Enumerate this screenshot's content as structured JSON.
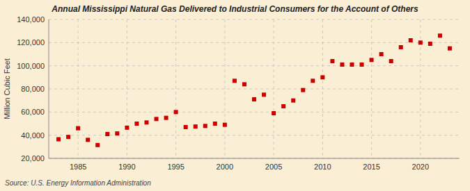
{
  "chart_data": {
    "type": "scatter",
    "title": "Annual Mississippi Natural Gas Delivered to Industrial Consumers for the Account of Others",
    "y_label": "Million Cubic Feet",
    "annotations": [
      "Source: U.S. Energy Information Administration"
    ],
    "x": [
      1983,
      1984,
      1985,
      1986,
      1987,
      1988,
      1989,
      1990,
      1991,
      1992,
      1993,
      1994,
      1995,
      1996,
      1997,
      1998,
      1999,
      2000,
      2001,
      2002,
      2003,
      2004,
      2005,
      2006,
      2007,
      2008,
      2009,
      2010,
      2011,
      2012,
      2013,
      2014,
      2015,
      2016,
      2017,
      2018,
      2019,
      2020,
      2021,
      2022,
      2023
    ],
    "values": [
      36500,
      38500,
      46000,
      36000,
      31500,
      41000,
      41500,
      46500,
      50000,
      51000,
      54000,
      55000,
      60000,
      47000,
      47500,
      48000,
      50000,
      49000,
      87000,
      84000,
      71000,
      75000,
      59000,
      65000,
      70000,
      79000,
      87000,
      90000,
      104000,
      101000,
      101000,
      101000,
      105000,
      110000,
      104000,
      116000,
      122000,
      120000,
      119000,
      126000,
      115000
    ],
    "color": "#cc0000",
    "marker": "square",
    "xlim": [
      1982,
      2024
    ],
    "xticks": [
      1985,
      1990,
      1995,
      2000,
      2005,
      2010,
      2015,
      2020
    ],
    "ylim": [
      20000,
      140000
    ],
    "yticks": [
      {
        "value": 20000,
        "label": "20,000"
      },
      {
        "value": 40000,
        "label": "40,000"
      },
      {
        "value": 60000,
        "label": "60,000"
      },
      {
        "value": 80000,
        "label": "80,000"
      },
      {
        "value": 100000,
        "label": "100,000"
      },
      {
        "value": 120000,
        "label": "120,000"
      },
      {
        "value": 140000,
        "label": "140,000"
      }
    ],
    "grid": true
  }
}
